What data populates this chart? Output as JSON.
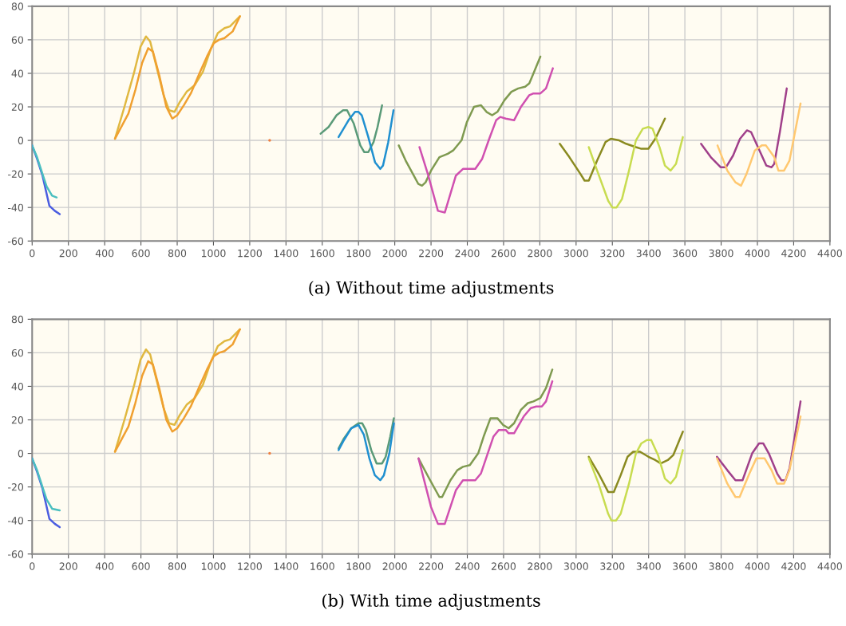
{
  "chart_data": [
    {
      "type": "line",
      "title": "(a) Without time adjustments",
      "xlim": [
        0,
        4400
      ],
      "xticks": [
        0,
        200,
        400,
        600,
        800,
        1000,
        1200,
        1400,
        1600,
        1800,
        2000,
        2200,
        2400,
        2600,
        2800,
        3000,
        3200,
        3400,
        3600,
        3800,
        4000,
        4200,
        4400
      ],
      "ylim": [
        -60,
        80
      ],
      "yticks": [
        -60,
        -40,
        -20,
        0,
        20,
        40,
        60,
        80
      ],
      "grid": true,
      "series": [
        {
          "color": "#4b5de0",
          "x": [
            0,
            27,
            57,
            95,
            125,
            152
          ],
          "values": [
            -3,
            -11,
            -21,
            -39,
            -42,
            -44
          ]
        },
        {
          "color": "#4bbfc0",
          "x": [
            0,
            27,
            57,
            80,
            110,
            135
          ],
          "values": [
            -3,
            -10,
            -20,
            -27.5,
            -33,
            -34
          ]
        },
        {
          "color": "#e0b840",
          "x": [
            457,
            509,
            561,
            598,
            628,
            651,
            688,
            725,
            755,
            785,
            815,
            852,
            897,
            942,
            987,
            1024,
            1061,
            1091,
            1146
          ],
          "values": [
            1,
            20,
            40,
            56,
            62,
            59,
            43,
            27,
            18,
            17,
            23,
            29,
            33,
            41,
            55,
            64,
            67,
            68,
            74
          ]
        },
        {
          "color": "#f0a030",
          "x": [
            457,
            531,
            569,
            606,
            640,
            666,
            703,
            740,
            773,
            800,
            837,
            875,
            927,
            964,
            1002,
            1031,
            1061,
            1106,
            1146
          ],
          "values": [
            1,
            16,
            30,
            46,
            55,
            53,
            38,
            20,
            13,
            15,
            21,
            28,
            41,
            50,
            58,
            60,
            61,
            65,
            74
          ]
        },
        {
          "type": "scatter",
          "color": "#f08040",
          "x": [
            1310
          ],
          "values": [
            0
          ]
        },
        {
          "color": "#5a9a78",
          "x": [
            1591,
            1635,
            1679,
            1715,
            1737,
            1774,
            1810,
            1832,
            1854,
            1883,
            1905,
            1930
          ],
          "values": [
            4,
            8,
            15,
            18,
            18,
            10,
            -3,
            -7,
            -7,
            -1,
            8,
            21
          ]
        },
        {
          "color": "#2090d0",
          "x": [
            1690,
            1745,
            1781,
            1800,
            1818,
            1854,
            1891,
            1920,
            1935,
            1964,
            1993
          ],
          "values": [
            2,
            12,
            17,
            17,
            15,
            2,
            -13,
            -17,
            -15,
            -1,
            18
          ]
        },
        {
          "color": "#7f9a50",
          "x": [
            2022,
            2060,
            2100,
            2130,
            2150,
            2170,
            2200,
            2246,
            2292,
            2322,
            2368,
            2398,
            2437,
            2475,
            2506,
            2537,
            2566,
            2605,
            2643,
            2681,
            2719,
            2742,
            2765,
            2803
          ],
          "values": [
            -3,
            -12,
            -20,
            -26,
            -27,
            -25,
            -18,
            -10,
            -8,
            -6,
            0,
            11,
            20,
            21,
            17,
            15,
            17,
            24,
            29,
            31,
            32,
            34,
            40,
            50
          ]
        },
        {
          "color": "#d050b0",
          "x": [
            2136,
            2185,
            2238,
            2276,
            2337,
            2376,
            2444,
            2482,
            2521,
            2559,
            2582,
            2612,
            2658,
            2696,
            2742,
            2765,
            2803,
            2834,
            2872
          ],
          "values": [
            -4,
            -21,
            -42,
            -43,
            -21,
            -17,
            -17,
            -11,
            1,
            12,
            14,
            13,
            12,
            20,
            27,
            28,
            28,
            31,
            43
          ]
        },
        {
          "color": "#8a8a20",
          "x": [
            2910,
            2963,
            3024,
            3047,
            3070,
            3116,
            3162,
            3192,
            3238,
            3276,
            3330,
            3360,
            3399,
            3437,
            3490
          ],
          "values": [
            -2,
            -10,
            -20,
            -24,
            -24,
            -12,
            -1,
            1,
            0,
            -2,
            -4,
            -5,
            -5,
            1,
            13
          ]
        },
        {
          "color": "#c8dc50",
          "x": [
            3070,
            3116,
            3177,
            3200,
            3223,
            3253,
            3292,
            3330,
            3368,
            3399,
            3422,
            3460,
            3490,
            3521,
            3551,
            3589
          ],
          "values": [
            -4,
            -18,
            -36,
            -40,
            -40,
            -35,
            -18,
            0,
            7,
            8,
            7,
            -4,
            -15,
            -18,
            -14,
            2
          ]
        },
        {
          "color": "#a0408a",
          "x": [
            3689,
            3743,
            3797,
            3827,
            3866,
            3904,
            3942,
            3965,
            4003,
            4049,
            4078,
            4093,
            4124,
            4162
          ],
          "values": [
            -2,
            -10,
            -16,
            -16,
            -9,
            1,
            6,
            5,
            -4,
            -15,
            -16,
            -14,
            5,
            31
          ]
        },
        {
          "color": "#ffc870",
          "x": [
            3780,
            3834,
            3879,
            3910,
            3940,
            3986,
            4024,
            4047,
            4093,
            4116,
            4147,
            4177,
            4238
          ],
          "values": [
            -3,
            -18,
            -25,
            -27,
            -20,
            -6,
            -3,
            -3,
            -10,
            -18,
            -18,
            -12,
            22
          ]
        }
      ]
    },
    {
      "type": "line",
      "title": "(b) With time adjustments",
      "xlim": [
        0,
        4400
      ],
      "xticks": [
        0,
        200,
        400,
        600,
        800,
        1000,
        1200,
        1400,
        1600,
        1800,
        2000,
        2200,
        2400,
        2600,
        2800,
        3000,
        3200,
        3400,
        3600,
        3800,
        4000,
        4200,
        4400
      ],
      "ylim": [
        -60,
        80
      ],
      "yticks": [
        -60,
        -40,
        -20,
        0,
        20,
        40,
        60,
        80
      ],
      "grid": true,
      "series": [
        {
          "color": "#4b5de0",
          "x": [
            0,
            27,
            57,
            95,
            125,
            152
          ],
          "values": [
            -3,
            -11,
            -21,
            -39,
            -42,
            -44
          ]
        },
        {
          "color": "#4bbfc0",
          "x": [
            0,
            27,
            57,
            80,
            110,
            152
          ],
          "values": [
            -3,
            -10,
            -20,
            -27.5,
            -33,
            -34
          ]
        },
        {
          "color": "#e0b840",
          "x": [
            457,
            509,
            561,
            598,
            628,
            651,
            688,
            725,
            755,
            785,
            815,
            852,
            897,
            942,
            987,
            1024,
            1061,
            1091,
            1146
          ],
          "values": [
            1,
            20,
            40,
            56,
            62,
            59,
            43,
            27,
            18,
            17,
            23,
            29,
            33,
            41,
            55,
            64,
            67,
            68,
            74
          ]
        },
        {
          "color": "#f0a030",
          "x": [
            457,
            531,
            569,
            606,
            640,
            666,
            703,
            740,
            773,
            800,
            837,
            875,
            927,
            964,
            1002,
            1031,
            1061,
            1106,
            1146
          ],
          "values": [
            1,
            16,
            30,
            46,
            55,
            53,
            38,
            20,
            13,
            15,
            21,
            28,
            41,
            50,
            58,
            60,
            61,
            65,
            74
          ]
        },
        {
          "type": "scatter",
          "color": "#f08040",
          "x": [
            1310
          ],
          "values": [
            0
          ]
        },
        {
          "color": "#5a9a78",
          "x": [
            1690,
            1720,
            1760,
            1800,
            1820,
            1840,
            1870,
            1900,
            1930,
            1950,
            1975,
            1995
          ],
          "values": [
            3,
            9,
            15,
            18,
            18,
            14,
            2,
            -6,
            -6,
            -2,
            10,
            21
          ]
        },
        {
          "color": "#2090d0",
          "x": [
            1690,
            1720,
            1760,
            1800,
            1830,
            1860,
            1890,
            1920,
            1940,
            1970,
            1995
          ],
          "values": [
            2,
            8,
            15,
            17,
            11,
            -3,
            -13,
            -16,
            -13,
            0,
            18
          ]
        },
        {
          "color": "#7f9a50",
          "x": [
            2131,
            2185,
            2246,
            2261,
            2307,
            2345,
            2376,
            2414,
            2460,
            2490,
            2528,
            2566,
            2597,
            2628,
            2658,
            2696,
            2734,
            2765,
            2803,
            2834,
            2869
          ],
          "values": [
            -3,
            -14,
            -26,
            -26,
            -16,
            -10,
            -8,
            -7,
            0,
            10,
            21,
            21,
            17,
            15,
            18,
            26,
            30,
            31,
            33,
            39,
            50
          ]
        },
        {
          "color": "#d050b0",
          "x": [
            2131,
            2200,
            2238,
            2276,
            2337,
            2376,
            2444,
            2475,
            2544,
            2574,
            2612,
            2628,
            2658,
            2711,
            2750,
            2780,
            2811,
            2834,
            2869
          ],
          "values": [
            -3,
            -32,
            -42,
            -42,
            -22,
            -16,
            -16,
            -12,
            10,
            14,
            14,
            12,
            12,
            22,
            27,
            28,
            28,
            31,
            43
          ]
        },
        {
          "color": "#8a8a20",
          "x": [
            3070,
            3124,
            3177,
            3208,
            3246,
            3284,
            3315,
            3353,
            3399,
            3437,
            3467,
            3506,
            3536,
            3589
          ],
          "values": [
            -2,
            -12,
            -23,
            -23,
            -13,
            -2,
            1,
            1,
            -2,
            -4,
            -6,
            -4,
            -1,
            13
          ]
        },
        {
          "color": "#c8dc50",
          "x": [
            3070,
            3124,
            3177,
            3195,
            3220,
            3246,
            3292,
            3330,
            3360,
            3391,
            3414,
            3452,
            3490,
            3521,
            3551,
            3589
          ],
          "values": [
            -3,
            -18,
            -36,
            -40,
            -40,
            -36,
            -18,
            0,
            6,
            8,
            8,
            -1,
            -15,
            -18,
            -14,
            2
          ]
        },
        {
          "color": "#a0408a",
          "x": [
            3777,
            3834,
            3879,
            3918,
            3971,
            4009,
            4032,
            4063,
            4109,
            4132,
            4155,
            4177,
            4238
          ],
          "values": [
            -2,
            -10,
            -16,
            -16,
            0,
            6,
            6,
            0,
            -12,
            -16,
            -16,
            -9,
            31
          ]
        },
        {
          "color": "#ffc870",
          "x": [
            3777,
            3834,
            3879,
            3902,
            3956,
            3994,
            4040,
            4078,
            4109,
            4147,
            4177,
            4238
          ],
          "values": [
            -3,
            -18,
            -26,
            -26,
            -12,
            -3,
            -3,
            -10,
            -18,
            -18,
            -10,
            22
          ]
        }
      ]
    }
  ]
}
